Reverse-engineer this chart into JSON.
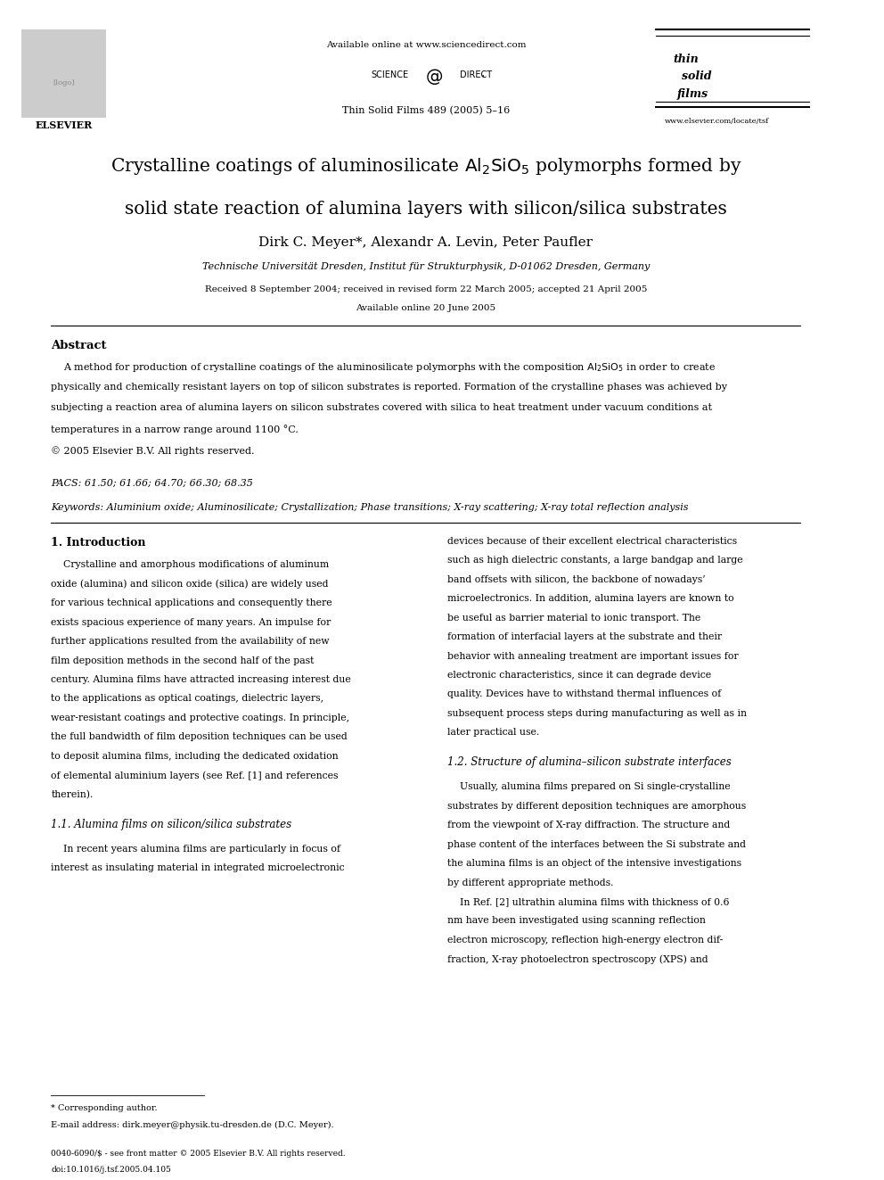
{
  "page_width": 9.92,
  "page_height": 13.23,
  "bg_color": "#ffffff",
  "top_bar_text": "Available online at www.sciencedirect.com",
  "journal_ref": "Thin Solid Films 489 (2005) 5–16",
  "website": "www.elsevier.com/locate/tsf",
  "title_line1": "Crystalline coatings of aluminosilicate Al",
  "title_sub1": "2",
  "title_line1b": "SiO",
  "title_sub2": "5",
  "title_line1c": " polymorphs formed by",
  "title_line2": "solid state reaction of alumina layers with silicon/silica substrates",
  "authors": "Dirk C. Meyer*, Alexandr A. Levin, Peter Paufler",
  "affiliation": "Technische Universität Dresden, Institut für Strukturphysik, D-01062 Dresden, Germany",
  "received": "Received 8 September 2004; received in revised form 22 March 2005; accepted 21 April 2005",
  "available": "Available online 20 June 2005",
  "abstract_heading": "Abstract",
  "abstract_text": "A method for production of crystalline coatings of the aluminosilicate polymorphs with the composition Al₂SiO₅ in order to create\nphysically and chemically resistant layers on top of silicon substrates is reported. Formation of the crystalline phases was achieved by\nsubjecting a reaction area of alumina layers on silicon substrates covered with silica to heat treatment under vacuum conditions at\ntemperatures in a narrow range around 1100 °C.\n© 2005 Elsevier B.V. All rights reserved.",
  "pacs": "PACS: 61.50; 61.66; 64.70; 66.30; 68.35",
  "keywords": "Keywords: Aluminium oxide; Aluminosilicate; Crystallization; Phase transitions; X-ray scattering; X-ray total reflection analysis",
  "section1_heading": "1. Introduction",
  "section1_col1": "    Crystalline and amorphous modifications of aluminum oxide (alumina) and silicon oxide (silica) are widely used for various technical applications and consequently there exists spacious experience of many years. An impulse for further applications resulted from the availability of new film deposition methods in the second half of the past century. Alumina films have attracted increasing interest due to the applications as optical coatings, dielectric layers, wear-resistant coatings and protective coatings. In principle, the full bandwidth of film deposition techniques can be used to deposit alumina films, including the dedicated oxidation of elemental aluminium layers (see Ref. [1] and references therein).",
  "section11_heading": "1.1. Alumina films on silicon/silica substrates",
  "section11_col1": "    In recent years alumina films are particularly in focus of interest as insulating material in integrated microelectronic",
  "section1_col2": "devices because of their excellent electrical characteristics such as high dielectric constants, a large bandgap and large band offsets with silicon, the backbone of nowadays’ microelectronics. In addition, alumina layers are known to be useful as barrier material to ionic transport. The formation of interfacial layers at the substrate and their behavior with annealing treatment are important issues for electronic characteristics, since it can degrade device quality. Devices have to withstand thermal influences of subsequent process steps during manufacturing as well as in later practical use.",
  "section12_heading": "1.2. Structure of alumina–silicon substrate interfaces",
  "section12_col2": "    Usually, alumina films prepared on Si single-crystalline substrates by different deposition techniques are amorphous from the viewpoint of X-ray diffraction. The structure and phase content of the interfaces between the Si substrate and the alumina films is an object of the intensive investigations by different appropriate methods.\n    In Ref. [2] ultrathin alumina films with thickness of 0.6 nm have been investigated using scanning reflection electron microscopy, reflection high-energy electron diffraction, X-ray photoelectron spectroscopy (XPS) and",
  "footnote_star": "* Corresponding author.",
  "footnote_email": "E-mail address: dirk.meyer@physik.tu-dresden.de (D.C. Meyer).",
  "footnote_issn": "0040-6090/$ - see front matter © 2005 Elsevier B.V. All rights reserved.",
  "footnote_doi": "doi:10.1016/j.tsf.2005.04.105"
}
